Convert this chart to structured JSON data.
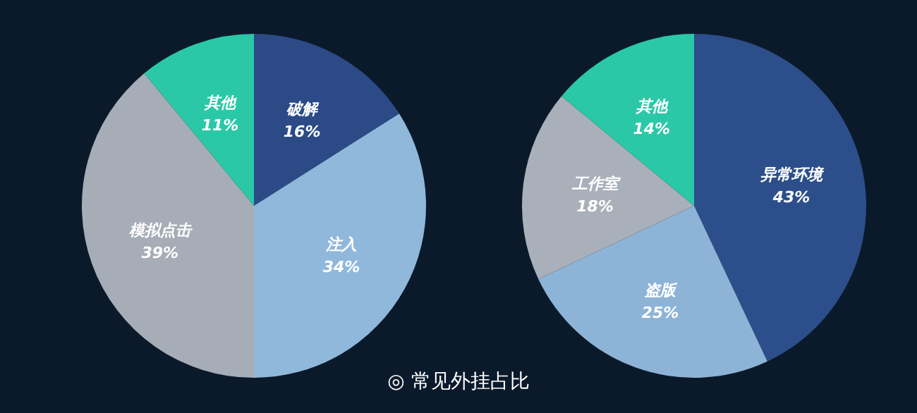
{
  "chart_data": [
    {
      "type": "pie",
      "categories": [
        "破解",
        "注入",
        "模拟点击",
        "其他"
      ],
      "values": [
        16,
        34,
        39,
        11
      ],
      "colors": [
        "#2b4a86",
        "#8fb8db",
        "#a6adb7",
        "#2bc8a7"
      ],
      "value_labels": [
        "16%",
        "34%",
        "39%",
        "11%"
      ],
      "annotations": [
        "◎ 常见外挂占比"
      ]
    },
    {
      "type": "pie",
      "categories": [
        "异常环境",
        "盗版",
        "工作室",
        "其他"
      ],
      "values": [
        43,
        25,
        18,
        14
      ],
      "colors": [
        "#2c4f8b",
        "#8db4d6",
        "#a9b0ba",
        "#2bc8a7"
      ],
      "value_labels": [
        "43%",
        "25%",
        "18%",
        "14%"
      ]
    }
  ]
}
